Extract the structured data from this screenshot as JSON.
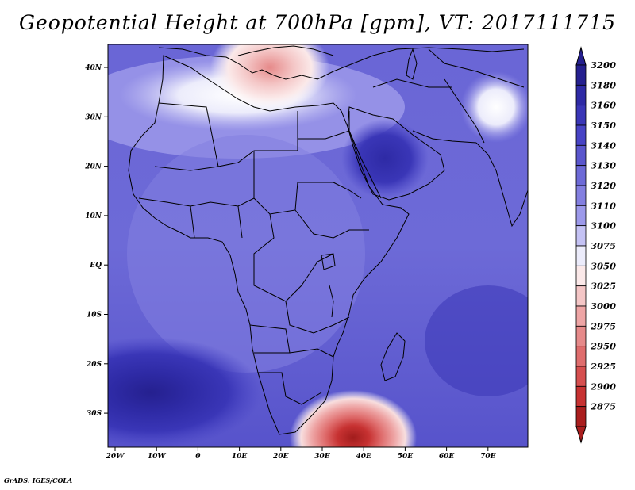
{
  "title": "Geopotential Height at 700hPa [gpm], VT: 2017111715",
  "footer": "GrADS: IGES/COLA",
  "lat_labels": [
    "40N",
    "30N",
    "20N",
    "10N",
    "EQ",
    "10S",
    "20S",
    "30S"
  ],
  "lon_labels": [
    "20W",
    "10W",
    "0",
    "10E",
    "20E",
    "30E",
    "40E",
    "50E",
    "60E",
    "70E"
  ],
  "colorbar": {
    "levels": [
      "3200",
      "3180",
      "3160",
      "3150",
      "3140",
      "3130",
      "3120",
      "3110",
      "3100",
      "3075",
      "3050",
      "3025",
      "3000",
      "2975",
      "2950",
      "2925",
      "2900",
      "2875"
    ],
    "colors": [
      "#25208f",
      "#2e2aa5",
      "#3a36b7",
      "#4743c5",
      "#5a56cd",
      "#6d6ad7",
      "#837fe0",
      "#9c99ea",
      "#c4c2f4",
      "#ececfb",
      "#fbe9e9",
      "#f4c6c6",
      "#eea5a5",
      "#e68a8a",
      "#df6d6d",
      "#d64f4f",
      "#c73232",
      "#aa1e1e"
    ]
  },
  "map": {
    "ocean_color": "#4a46c4",
    "land_color": "#7a76db",
    "low_center_colors": [
      "#f4c6c6",
      "#eea5a5",
      "#df6d6d",
      "#c73232",
      "#a11c1c"
    ],
    "high_center_color": "#2b279b"
  }
}
